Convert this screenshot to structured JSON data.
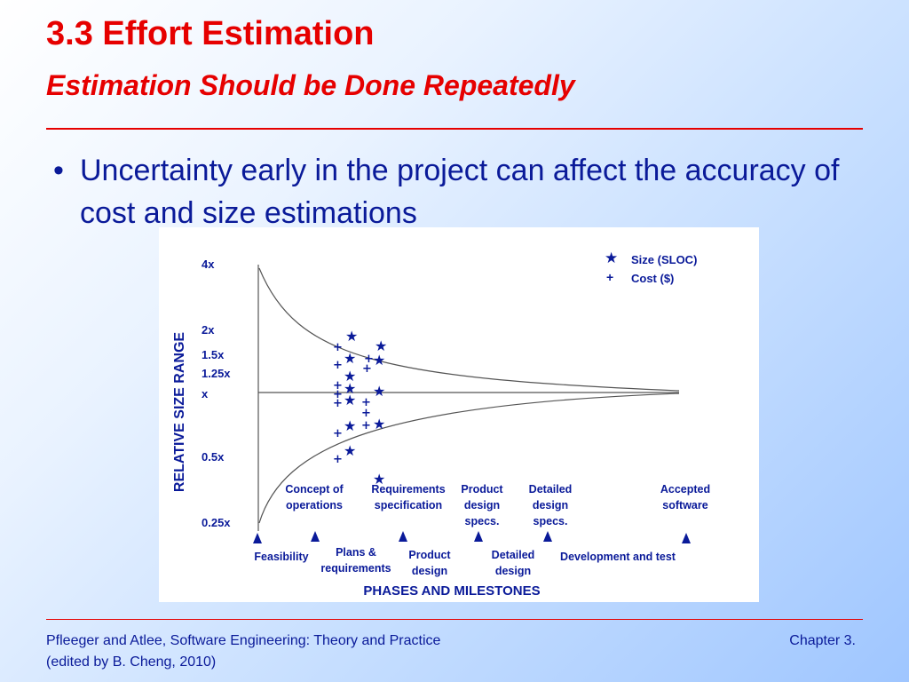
{
  "slide": {
    "title": "3.3 Effort Estimation",
    "subtitle": "Estimation Should be Done Repeatedly",
    "bullets": [
      "Uncertainty early in the project can affect the accuracy of cost and size estimations"
    ],
    "footer_left_line1": "Pfleeger and Atlee, Software Engineering: Theory and Practice",
    "footer_left_line2": "(edited by B. Cheng, 2010)",
    "footer_right": "Chapter 3.",
    "title_color": "#e60000",
    "text_color": "#0a1a99"
  },
  "diagram": {
    "y_axis_title": "RELATIVE SIZE RANGE",
    "x_axis_title": "PHASES AND MILESTONES",
    "y_ticks": [
      "4x",
      "2x",
      "1.5x",
      "1.25x",
      "x",
      "0.5x",
      "0.25x"
    ],
    "legend": [
      {
        "symbol": "★",
        "label": "Size (SLOC)",
        "icon": "star-icon"
      },
      {
        "symbol": "+",
        "label": "Cost ($)",
        "icon": "plus-icon"
      }
    ],
    "milestones": [
      [
        "Concept of",
        "operations"
      ],
      [
        "Requirements",
        "specification"
      ],
      [
        "Product",
        "design",
        "specs."
      ],
      [
        "Detailed",
        "design",
        "specs."
      ],
      [
        "Accepted",
        "software"
      ]
    ],
    "phases": [
      [
        "Feasibility"
      ],
      [
        "Plans &",
        "requirements"
      ],
      [
        "Product",
        "design"
      ],
      [
        "Detailed",
        "design"
      ],
      [
        "Development and test"
      ]
    ]
  }
}
